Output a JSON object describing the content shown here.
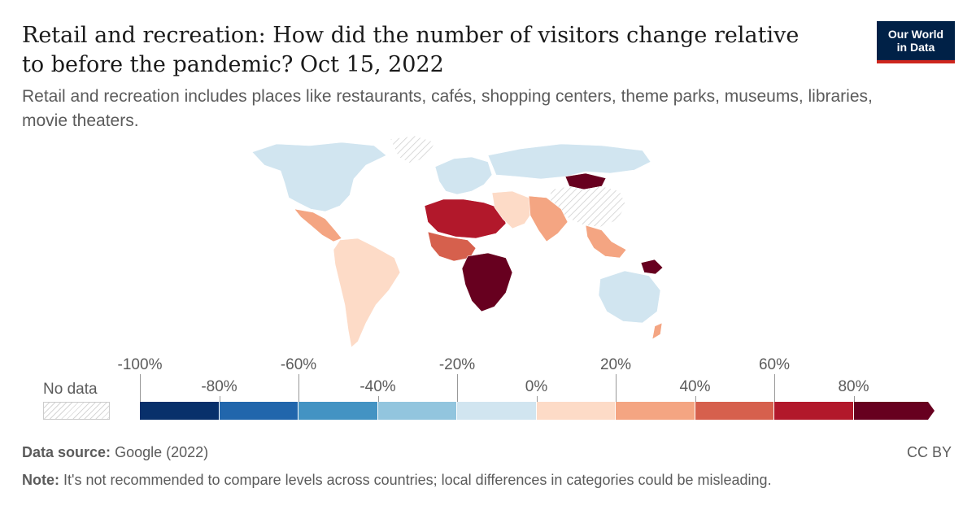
{
  "header": {
    "title": "Retail and recreation: How did the number of visitors change relative to before the pandemic? Oct 15, 2022",
    "subtitle": "Retail and recreation includes places like restaurants, cafés, shopping centers, theme parks, museums, libraries, movie theaters."
  },
  "logo": {
    "line1": "Our World",
    "line2": "in Data"
  },
  "legend": {
    "no_data_label": "No data",
    "upper_ticks": [
      "-100%",
      "-60%",
      "-20%",
      "20%",
      "60%"
    ],
    "lower_ticks": [
      "-80%",
      "-40%",
      "0%",
      "40%",
      "80%"
    ],
    "bins": [
      {
        "from": -100,
        "to": -80,
        "color": "#08306b"
      },
      {
        "from": -80,
        "to": -60,
        "color": "#2166ac"
      },
      {
        "from": -60,
        "to": -40,
        "color": "#4393c3"
      },
      {
        "from": -40,
        "to": -20,
        "color": "#92c5de"
      },
      {
        "from": -20,
        "to": 0,
        "color": "#d1e5f0"
      },
      {
        "from": 0,
        "to": 20,
        "color": "#fddbc7"
      },
      {
        "from": 20,
        "to": 40,
        "color": "#f4a582"
      },
      {
        "from": 40,
        "to": 60,
        "color": "#d6604d"
      },
      {
        "from": 60,
        "to": 80,
        "color": "#b2182b"
      },
      {
        "from": 80,
        "to": 100,
        "color": "#67001f"
      }
    ]
  },
  "map_regions": [
    {
      "name": "North America",
      "color": "#d1e5f0"
    },
    {
      "name": "Greenland",
      "color": "no-data"
    },
    {
      "name": "Central America",
      "color": "#f4a582"
    },
    {
      "name": "South America",
      "color": "#fddbc7"
    },
    {
      "name": "Europe",
      "color": "#d1e5f0"
    },
    {
      "name": "Russia",
      "color": "#d1e5f0"
    },
    {
      "name": "Mongolia",
      "color": "#67001f"
    },
    {
      "name": "China",
      "color": "no-data"
    },
    {
      "name": "North Africa",
      "color": "#b2182b"
    },
    {
      "name": "West Africa",
      "color": "#d6604d"
    },
    {
      "name": "Southern Africa",
      "color": "#67001f"
    },
    {
      "name": "Middle East",
      "color": "#fddbc7"
    },
    {
      "name": "South Asia",
      "color": "#f4a582"
    },
    {
      "name": "Southeast Asia",
      "color": "#f4a582"
    },
    {
      "name": "Australia",
      "color": "#d1e5f0"
    },
    {
      "name": "Papua New Guinea",
      "color": "#67001f"
    },
    {
      "name": "New Zealand",
      "color": "#f4a582"
    }
  ],
  "footer": {
    "source_label": "Data source:",
    "source_text": "Google (2022)",
    "note_label": "Note:",
    "note_text": "It's not recommended to compare levels across countries; local differences in categories could be misleading.",
    "license": "CC BY"
  }
}
